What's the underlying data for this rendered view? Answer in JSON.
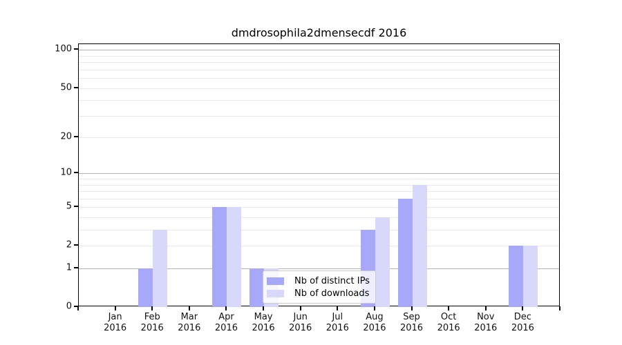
{
  "chart_data": {
    "type": "bar",
    "title": "dmdrosophila2dmensecdf 2016",
    "categories": [
      "Jan 2016",
      "Feb 2016",
      "Mar 2016",
      "Apr 2016",
      "May 2016",
      "Jun 2016",
      "Jul 2016",
      "Aug 2016",
      "Sep 2016",
      "Oct 2016",
      "Nov 2016",
      "Dec 2016"
    ],
    "series": [
      {
        "name": "Nb of distinct IPs",
        "color": "#a8a8f8",
        "values": [
          0,
          1,
          0,
          5,
          1,
          0,
          0,
          3,
          6,
          0,
          0,
          2
        ]
      },
      {
        "name": "Nb of downloads",
        "color": "#d8d8fa",
        "values": [
          0,
          3,
          0,
          5,
          1,
          0,
          0,
          4,
          8,
          0,
          0,
          2
        ]
      }
    ],
    "xlabel": "",
    "ylabel": "",
    "yscale": "log1p",
    "ylim": [
      0,
      111
    ],
    "yticks": [
      0,
      1,
      2,
      5,
      10,
      20,
      50,
      100
    ],
    "grid_major_values": [
      1,
      10,
      100
    ],
    "grid_minor_values": [
      2,
      3,
      4,
      5,
      6,
      7,
      8,
      9,
      20,
      30,
      40,
      50,
      60,
      70,
      80,
      90
    ],
    "grid": true,
    "legend_position": "inside lower center-right"
  },
  "colors": {
    "major_grid": "#b3b3b3",
    "minor_grid": "#e9e9e9",
    "spine": "#000000",
    "text": "#000000",
    "background": "#ffffff"
  }
}
